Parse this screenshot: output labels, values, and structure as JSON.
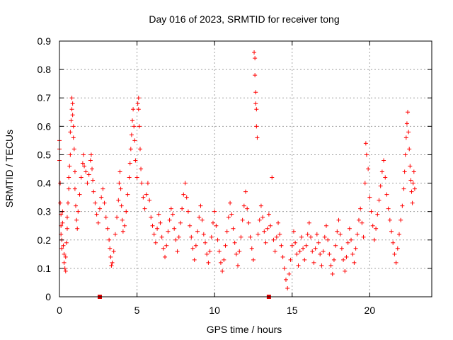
{
  "chart_data": {
    "type": "scatter",
    "title": "Day 016 of 2023, SRMTID for receiver tong",
    "xlabel": "GPS time / hours",
    "ylabel": "SRMTID / TECUs",
    "xlim": [
      0,
      24
    ],
    "ylim": [
      0,
      0.9
    ],
    "xticks": [
      0,
      5,
      10,
      15,
      20
    ],
    "xtick_labels": [
      "0",
      "5",
      "10",
      "15",
      "20"
    ],
    "yticks": [
      0,
      0.1,
      0.2,
      0.3,
      0.4,
      0.5,
      0.6,
      0.7,
      0.8,
      0.9
    ],
    "ytick_labels": [
      "0",
      "0.1",
      "0.2",
      "0.3",
      "0.4",
      "0.5",
      "0.6",
      "0.7",
      "0.8",
      "0.9"
    ],
    "grid": true,
    "series": [
      {
        "name": "SRMTID",
        "color": "#ff0000",
        "marker": "plus",
        "points": [
          [
            0.0,
            0.55
          ],
          [
            0.0,
            0.52
          ],
          [
            0.0,
            0.48
          ],
          [
            0.05,
            0.4
          ],
          [
            0.05,
            0.33
          ],
          [
            0.1,
            0.29
          ],
          [
            0.1,
            0.25
          ],
          [
            0.1,
            0.22
          ],
          [
            0.15,
            0.2
          ],
          [
            0.15,
            0.17
          ],
          [
            0.2,
            0.3
          ],
          [
            0.2,
            0.26
          ],
          [
            0.25,
            0.18
          ],
          [
            0.3,
            0.15
          ],
          [
            0.3,
            0.12
          ],
          [
            0.35,
            0.1
          ],
          [
            0.4,
            0.09
          ],
          [
            0.4,
            0.14
          ],
          [
            0.45,
            0.19
          ],
          [
            0.5,
            0.24
          ],
          [
            0.5,
            0.28
          ],
          [
            0.55,
            0.33
          ],
          [
            0.6,
            0.38
          ],
          [
            0.6,
            0.42
          ],
          [
            0.65,
            0.46
          ],
          [
            0.7,
            0.5
          ],
          [
            0.7,
            0.58
          ],
          [
            0.75,
            0.62
          ],
          [
            0.8,
            0.66
          ],
          [
            0.8,
            0.7
          ],
          [
            0.85,
            0.68
          ],
          [
            0.85,
            0.64
          ],
          [
            0.9,
            0.6
          ],
          [
            0.9,
            0.56
          ],
          [
            0.95,
            0.52
          ],
          [
            1.0,
            0.44
          ],
          [
            1.0,
            0.38
          ],
          [
            1.05,
            0.32
          ],
          [
            1.1,
            0.27
          ],
          [
            1.15,
            0.24
          ],
          [
            1.2,
            0.3
          ],
          [
            1.3,
            0.36
          ],
          [
            1.4,
            0.42
          ],
          [
            1.5,
            0.47
          ],
          [
            1.55,
            0.5
          ],
          [
            1.6,
            0.46
          ],
          [
            1.7,
            0.44
          ],
          [
            1.8,
            0.4
          ],
          [
            1.9,
            0.43
          ],
          [
            2.0,
            0.48
          ],
          [
            2.05,
            0.5
          ],
          [
            2.1,
            0.45
          ],
          [
            2.15,
            0.41
          ],
          [
            2.2,
            0.37
          ],
          [
            2.3,
            0.33
          ],
          [
            2.4,
            0.29
          ],
          [
            2.5,
            0.26
          ],
          [
            2.6,
            0.31
          ],
          [
            2.7,
            0.35
          ],
          [
            2.8,
            0.38
          ],
          [
            2.9,
            0.33
          ],
          [
            3.0,
            0.28
          ],
          [
            3.1,
            0.24
          ],
          [
            3.2,
            0.2
          ],
          [
            3.25,
            0.17
          ],
          [
            3.3,
            0.14
          ],
          [
            3.35,
            0.11
          ],
          [
            3.4,
            0.12
          ],
          [
            3.5,
            0.16
          ],
          [
            3.6,
            0.22
          ],
          [
            3.7,
            0.28
          ],
          [
            3.8,
            0.34
          ],
          [
            3.85,
            0.4
          ],
          [
            3.9,
            0.44
          ],
          [
            3.95,
            0.38
          ],
          [
            4.0,
            0.32
          ],
          [
            4.05,
            0.27
          ],
          [
            4.1,
            0.23
          ],
          [
            4.2,
            0.25
          ],
          [
            4.3,
            0.3
          ],
          [
            4.4,
            0.36
          ],
          [
            4.5,
            0.42
          ],
          [
            4.55,
            0.47
          ],
          [
            4.6,
            0.52
          ],
          [
            4.65,
            0.57
          ],
          [
            4.7,
            0.62
          ],
          [
            4.75,
            0.66
          ],
          [
            4.8,
            0.6
          ],
          [
            4.85,
            0.55
          ],
          [
            4.9,
            0.48
          ],
          [
            5.0,
            0.42
          ],
          [
            5.05,
            0.68
          ],
          [
            5.1,
            0.7
          ],
          [
            5.1,
            0.66
          ],
          [
            5.15,
            0.6
          ],
          [
            5.2,
            0.52
          ],
          [
            5.25,
            0.45
          ],
          [
            5.3,
            0.4
          ],
          [
            5.4,
            0.35
          ],
          [
            5.5,
            0.31
          ],
          [
            5.6,
            0.36
          ],
          [
            5.7,
            0.4
          ],
          [
            5.8,
            0.34
          ],
          [
            5.9,
            0.28
          ],
          [
            6.0,
            0.25
          ],
          [
            6.1,
            0.22
          ],
          [
            6.2,
            0.19
          ],
          [
            6.3,
            0.24
          ],
          [
            6.4,
            0.29
          ],
          [
            6.5,
            0.26
          ],
          [
            6.6,
            0.21
          ],
          [
            6.7,
            0.17
          ],
          [
            6.8,
            0.14
          ],
          [
            6.9,
            0.18
          ],
          [
            7.0,
            0.23
          ],
          [
            7.1,
            0.27
          ],
          [
            7.2,
            0.31
          ],
          [
            7.3,
            0.29
          ],
          [
            7.4,
            0.24
          ],
          [
            7.5,
            0.2
          ],
          [
            7.6,
            0.16
          ],
          [
            7.7,
            0.21
          ],
          [
            7.8,
            0.26
          ],
          [
            7.9,
            0.31
          ],
          [
            8.0,
            0.36
          ],
          [
            8.1,
            0.4
          ],
          [
            8.2,
            0.35
          ],
          [
            8.3,
            0.3
          ],
          [
            8.4,
            0.25
          ],
          [
            8.5,
            0.21
          ],
          [
            8.6,
            0.17
          ],
          [
            8.7,
            0.13
          ],
          [
            8.8,
            0.18
          ],
          [
            8.9,
            0.23
          ],
          [
            9.0,
            0.28
          ],
          [
            9.1,
            0.32
          ],
          [
            9.2,
            0.27
          ],
          [
            9.3,
            0.22
          ],
          [
            9.4,
            0.19
          ],
          [
            9.5,
            0.15
          ],
          [
            9.6,
            0.12
          ],
          [
            9.7,
            0.16
          ],
          [
            9.8,
            0.21
          ],
          [
            9.9,
            0.26
          ],
          [
            10.0,
            0.3
          ],
          [
            10.1,
            0.25
          ],
          [
            10.2,
            0.2
          ],
          [
            10.3,
            0.16
          ],
          [
            10.4,
            0.12
          ],
          [
            10.5,
            0.09
          ],
          [
            10.6,
            0.13
          ],
          [
            10.7,
            0.18
          ],
          [
            10.8,
            0.23
          ],
          [
            10.9,
            0.28
          ],
          [
            11.0,
            0.33
          ],
          [
            11.1,
            0.29
          ],
          [
            11.2,
            0.24
          ],
          [
            11.3,
            0.19
          ],
          [
            11.4,
            0.15
          ],
          [
            11.5,
            0.11
          ],
          [
            11.6,
            0.16
          ],
          [
            11.7,
            0.21
          ],
          [
            11.8,
            0.27
          ],
          [
            11.9,
            0.32
          ],
          [
            12.0,
            0.37
          ],
          [
            12.1,
            0.31
          ],
          [
            12.2,
            0.26
          ],
          [
            12.3,
            0.21
          ],
          [
            12.4,
            0.17
          ],
          [
            12.5,
            0.13
          ],
          [
            12.55,
            0.86
          ],
          [
            12.6,
            0.84
          ],
          [
            12.6,
            0.78
          ],
          [
            12.65,
            0.72
          ],
          [
            12.65,
            0.68
          ],
          [
            12.7,
            0.66
          ],
          [
            12.7,
            0.6
          ],
          [
            12.75,
            0.56
          ],
          [
            12.8,
            0.22
          ],
          [
            12.9,
            0.27
          ],
          [
            13.0,
            0.32
          ],
          [
            13.1,
            0.28
          ],
          [
            13.2,
            0.23
          ],
          [
            13.3,
            0.19
          ],
          [
            13.4,
            0.24
          ],
          [
            13.5,
            0.29
          ],
          [
            13.6,
            0.25
          ],
          [
            13.7,
            0.42
          ],
          [
            13.8,
            0.2
          ],
          [
            13.9,
            0.16
          ],
          [
            14.0,
            0.21
          ],
          [
            14.1,
            0.26
          ],
          [
            14.2,
            0.22
          ],
          [
            14.3,
            0.18
          ],
          [
            14.4,
            0.14
          ],
          [
            14.5,
            0.1
          ],
          [
            14.6,
            0.06
          ],
          [
            14.7,
            0.03
          ],
          [
            14.8,
            0.08
          ],
          [
            14.9,
            0.13
          ],
          [
            15.0,
            0.18
          ],
          [
            15.1,
            0.23
          ],
          [
            15.2,
            0.19
          ],
          [
            15.3,
            0.15
          ],
          [
            15.4,
            0.11
          ],
          [
            15.5,
            0.16
          ],
          [
            15.6,
            0.21
          ],
          [
            15.7,
            0.17
          ],
          [
            15.8,
            0.13
          ],
          [
            15.9,
            0.18
          ],
          [
            16.0,
            0.22
          ],
          [
            16.1,
            0.26
          ],
          [
            16.2,
            0.21
          ],
          [
            16.3,
            0.16
          ],
          [
            16.4,
            0.12
          ],
          [
            16.5,
            0.17
          ],
          [
            16.6,
            0.22
          ],
          [
            16.7,
            0.19
          ],
          [
            16.8,
            0.15
          ],
          [
            16.9,
            0.11
          ],
          [
            17.0,
            0.16
          ],
          [
            17.1,
            0.21
          ],
          [
            17.2,
            0.25
          ],
          [
            17.3,
            0.2
          ],
          [
            17.4,
            0.15
          ],
          [
            17.5,
            0.11
          ],
          [
            17.6,
            0.08
          ],
          [
            17.7,
            0.13
          ],
          [
            17.8,
            0.18
          ],
          [
            17.9,
            0.23
          ],
          [
            18.0,
            0.27
          ],
          [
            18.1,
            0.22
          ],
          [
            18.2,
            0.17
          ],
          [
            18.3,
            0.13
          ],
          [
            18.4,
            0.09
          ],
          [
            18.5,
            0.14
          ],
          [
            18.6,
            0.19
          ],
          [
            18.7,
            0.24
          ],
          [
            18.8,
            0.2
          ],
          [
            18.9,
            0.15
          ],
          [
            19.0,
            0.12
          ],
          [
            19.1,
            0.17
          ],
          [
            19.2,
            0.22
          ],
          [
            19.3,
            0.27
          ],
          [
            19.4,
            0.31
          ],
          [
            19.5,
            0.26
          ],
          [
            19.6,
            0.21
          ],
          [
            19.7,
            0.4
          ],
          [
            19.75,
            0.54
          ],
          [
            19.8,
            0.5
          ],
          [
            19.9,
            0.45
          ],
          [
            20.0,
            0.35
          ],
          [
            20.1,
            0.3
          ],
          [
            20.2,
            0.25
          ],
          [
            20.3,
            0.2
          ],
          [
            20.4,
            0.24
          ],
          [
            20.5,
            0.29
          ],
          [
            20.6,
            0.34
          ],
          [
            20.7,
            0.39
          ],
          [
            20.8,
            0.44
          ],
          [
            20.9,
            0.48
          ],
          [
            21.0,
            0.42
          ],
          [
            21.1,
            0.36
          ],
          [
            21.2,
            0.31
          ],
          [
            21.3,
            0.27
          ],
          [
            21.4,
            0.23
          ],
          [
            21.5,
            0.19
          ],
          [
            21.6,
            0.15
          ],
          [
            21.7,
            0.12
          ],
          [
            21.8,
            0.17
          ],
          [
            21.9,
            0.22
          ],
          [
            22.0,
            0.27
          ],
          [
            22.1,
            0.32
          ],
          [
            22.2,
            0.38
          ],
          [
            22.25,
            0.44
          ],
          [
            22.3,
            0.5
          ],
          [
            22.35,
            0.56
          ],
          [
            22.4,
            0.61
          ],
          [
            22.45,
            0.65
          ],
          [
            22.5,
            0.58
          ],
          [
            22.55,
            0.52
          ],
          [
            22.6,
            0.46
          ],
          [
            22.65,
            0.41
          ],
          [
            22.7,
            0.37
          ],
          [
            22.75,
            0.33
          ],
          [
            22.8,
            0.4
          ],
          [
            22.85,
            0.44
          ],
          [
            22.9,
            0.38
          ]
        ]
      }
    ],
    "markers": [
      {
        "x": 2.6,
        "y": 0,
        "label": ""
      },
      {
        "x": 13.5,
        "y": 0,
        "label": ""
      }
    ]
  }
}
